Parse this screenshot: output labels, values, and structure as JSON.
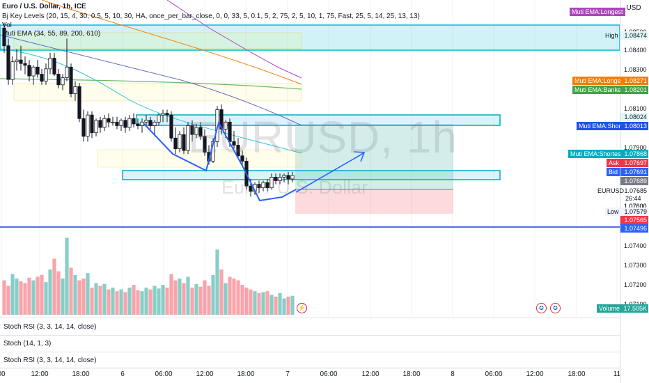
{
  "chart_title": "Euro / U.S. Dollar, 1h, ICE",
  "indicators": {
    "key_levels": "Bj Key Levels (20, 15, 4, 30, 0.5, 5, 10, 30, HA, once_per_bar_close, 0, 0, 33, 5, 0.1, 5, 2, 75, 2, 5, 10, 1, 75, Fast, 25, 5, 14, 25, 13, 13)",
    "vol": "Vol",
    "muti_ema": "Muti EMA (34, 55, 89, 200, 610)"
  },
  "watermark": {
    "symbol": "EURUSD, 1h",
    "name": "Euro / U.S. Dollar"
  },
  "currency": "USD",
  "lower_panes": [
    "Stoch RSI (3, 3, 14, 14, close)",
    "Stoch (14, 1, 3)",
    "Stoch RSI (3, 3, 14, 14, close)"
  ],
  "price_axis": {
    "ticks": [
      "1.08500",
      "1.08400",
      "1.08300",
      "1.08100",
      "1.07900",
      "1.07600",
      "1.07400",
      "1.07300",
      "1.07200",
      "1.07100"
    ],
    "tags": {
      "high": {
        "label": "High",
        "value": "1.08474"
      },
      "muti_longer": {
        "label": "Muti EMA:Longer",
        "value": "1.08271",
        "color": "#f57c00"
      },
      "muti_banker": {
        "label": "Muti EMA:Banker",
        "value": "1.08201",
        "color": "#43a047"
      },
      "level_a": {
        "value": "1.08024"
      },
      "muti_short": {
        "label": "Muti EMA:Short",
        "value": "1.08013",
        "color": "#1e53e5"
      },
      "muti_shortest": {
        "label": "Muti EMA:Shortest",
        "value": "1.07868",
        "color": "#00acc1"
      },
      "ask": {
        "label": "Ask",
        "value": "1.07697",
        "color": "#f23645"
      },
      "bid": {
        "label": "Bid",
        "value": "1.07691",
        "color": "#2962ff"
      },
      "last": {
        "value": "1.07689",
        "color": "#787b86"
      },
      "symbol": {
        "label": "EURUSD",
        "value": "1.07685",
        "countdown": "26:44"
      },
      "price_b": {
        "value": "1.07600"
      },
      "low": {
        "label": "Low",
        "value": "1.07579"
      },
      "red_level": {
        "value": "1.07565",
        "color": "#f23645"
      },
      "blue_level": {
        "value": "1.07496",
        "color": "#2962ff"
      },
      "muti_longest": {
        "label": "Muti EMA:Longest",
        "color": "#ab47bc"
      },
      "volume": {
        "label": "Volume",
        "value": "17.505K",
        "color": "#26a69a"
      }
    }
  },
  "time_axis": [
    {
      "label": "00",
      "x": 2
    },
    {
      "label": "12:00",
      "x": 57
    },
    {
      "label": "18:00",
      "x": 116
    },
    {
      "label": "6",
      "x": 176
    },
    {
      "label": "06:00",
      "x": 235
    },
    {
      "label": "12:00",
      "x": 294
    },
    {
      "label": "18:00",
      "x": 353
    },
    {
      "label": "7",
      "x": 413
    },
    {
      "label": "06:00",
      "x": 472
    },
    {
      "label": "12:00",
      "x": 532
    },
    {
      "label": "18:00",
      "x": 591
    },
    {
      "label": "8",
      "x": 650
    },
    {
      "label": "06:00",
      "x": 709
    },
    {
      "label": "12:00",
      "x": 768
    },
    {
      "label": "18:00",
      "x": 828
    },
    {
      "label": "11",
      "x": 886
    }
  ],
  "chart_data": {
    "type": "candlestick",
    "price_range": [
      1.0736,
      1.0856
    ],
    "candles": [
      [
        1.0852,
        1.0855,
        1.0838,
        1.0842
      ],
      [
        1.0842,
        1.0846,
        1.082,
        1.0823
      ],
      [
        1.0823,
        1.0836,
        1.082,
        1.0833
      ],
      [
        1.0833,
        1.084,
        1.0828,
        1.0834
      ],
      [
        1.0834,
        1.0842,
        1.0828,
        1.0832
      ],
      [
        1.0832,
        1.0836,
        1.0826,
        1.0831
      ],
      [
        1.0831,
        1.0834,
        1.0822,
        1.0825
      ],
      [
        1.0825,
        1.0831,
        1.082,
        1.083
      ],
      [
        1.083,
        1.0834,
        1.0824,
        1.0826
      ],
      [
        1.0826,
        1.0829,
        1.082,
        1.0822
      ],
      [
        1.0822,
        1.0832,
        1.082,
        1.0829
      ],
      [
        1.0829,
        1.0838,
        1.0826,
        1.0835
      ],
      [
        1.0835,
        1.0838,
        1.0825,
        1.0826
      ],
      [
        1.0826,
        1.0829,
        1.0818,
        1.082
      ],
      [
        1.082,
        1.0826,
        1.0817,
        1.0824
      ],
      [
        1.0824,
        1.0846,
        1.0822,
        1.083
      ],
      [
        1.083,
        1.0832,
        1.0813,
        1.0815
      ],
      [
        1.0815,
        1.0822,
        1.0811,
        1.0819
      ],
      [
        1.0819,
        1.0821,
        1.0799,
        1.0801
      ],
      [
        1.0801,
        1.0806,
        1.0788,
        1.0791
      ],
      [
        1.0791,
        1.0805,
        1.0788,
        1.0803
      ],
      [
        1.0803,
        1.0805,
        1.079,
        1.0793
      ],
      [
        1.0793,
        1.0801,
        1.0791,
        1.08
      ],
      [
        1.08,
        1.0802,
        1.0793,
        1.0796
      ],
      [
        1.0796,
        1.0803,
        1.0794,
        1.0801
      ],
      [
        1.0801,
        1.0804,
        1.0796,
        1.0799
      ],
      [
        1.0799,
        1.0802,
        1.0797,
        1.0799
      ],
      [
        1.0799,
        1.0802,
        1.0795,
        1.0797
      ],
      [
        1.0797,
        1.0801,
        1.0794,
        1.08
      ],
      [
        1.08,
        1.0802,
        1.0793,
        1.0796
      ],
      [
        1.0796,
        1.0803,
        1.0794,
        1.0801
      ],
      [
        1.0801,
        1.0804,
        1.0796,
        1.0798
      ],
      [
        1.0798,
        1.0801,
        1.0795,
        1.0797
      ],
      [
        1.0797,
        1.0801,
        1.0793,
        1.0799
      ],
      [
        1.0799,
        1.0803,
        1.0797,
        1.08
      ],
      [
        1.08,
        1.0802,
        1.0795,
        1.0797
      ],
      [
        1.0797,
        1.08,
        1.0791,
        1.0799
      ],
      [
        1.0799,
        1.0804,
        1.0797,
        1.0803
      ],
      [
        1.0803,
        1.0806,
        1.0799,
        1.0804
      ],
      [
        1.0804,
        1.0806,
        1.0799,
        1.0803
      ],
      [
        1.0803,
        1.0805,
        1.0788,
        1.079
      ],
      [
        1.079,
        1.0796,
        1.0781,
        1.0784
      ],
      [
        1.0784,
        1.0794,
        1.0782,
        1.0792
      ],
      [
        1.0792,
        1.0796,
        1.0781,
        1.0783
      ],
      [
        1.0783,
        1.0799,
        1.0781,
        1.0797
      ],
      [
        1.0797,
        1.08,
        1.0788,
        1.0792
      ],
      [
        1.0792,
        1.0798,
        1.079,
        1.0796
      ],
      [
        1.0796,
        1.0799,
        1.0789,
        1.0791
      ],
      [
        1.0791,
        1.0795,
        1.078,
        1.0782
      ],
      [
        1.0782,
        1.0786,
        1.0775,
        1.0777
      ],
      [
        1.0777,
        1.079,
        1.0776,
        1.0788
      ],
      [
        1.0788,
        1.0808,
        1.0785,
        1.0806
      ],
      [
        1.0806,
        1.0809,
        1.0792,
        1.0795
      ],
      [
        1.0795,
        1.08,
        1.079,
        1.0799
      ],
      [
        1.0799,
        1.0801,
        1.0785,
        1.0788
      ],
      [
        1.0788,
        1.0794,
        1.0784,
        1.0786
      ],
      [
        1.0786,
        1.079,
        1.0778,
        1.078
      ],
      [
        1.078,
        1.0783,
        1.0775,
        1.0777
      ],
      [
        1.0777,
        1.0779,
        1.0761,
        1.0763
      ],
      [
        1.0763,
        1.0767,
        1.0757,
        1.076
      ],
      [
        1.076,
        1.0765,
        1.0758,
        1.0764
      ],
      [
        1.0764,
        1.0766,
        1.0759,
        1.0762
      ],
      [
        1.0762,
        1.0766,
        1.076,
        1.0765
      ],
      [
        1.0765,
        1.0767,
        1.076,
        1.0762
      ],
      [
        1.0762,
        1.077,
        1.0761,
        1.0768
      ],
      [
        1.0768,
        1.077,
        1.0764,
        1.0766
      ],
      [
        1.0766,
        1.077,
        1.0764,
        1.0768
      ],
      [
        1.0768,
        1.077,
        1.0765,
        1.0769
      ],
      [
        1.0769,
        1.0771,
        1.0764,
        1.0767
      ],
      [
        1.0767,
        1.0771,
        1.0765,
        1.0769
      ]
    ],
    "volume": [
      38,
      32,
      45,
      40,
      37,
      35,
      41,
      38,
      42,
      44,
      36,
      50,
      62,
      48,
      40,
      85,
      52,
      44,
      38,
      40,
      46,
      30,
      35,
      32,
      34,
      28,
      30,
      26,
      28,
      25,
      30,
      33,
      27,
      26,
      30,
      28,
      32,
      29,
      33,
      30,
      45,
      38,
      40,
      35,
      42,
      30,
      34,
      31,
      38,
      32,
      44,
      72,
      50,
      35,
      42,
      40,
      38,
      33,
      30,
      28,
      26,
      24,
      25,
      26,
      22,
      20,
      24,
      18,
      20,
      21
    ]
  }
}
